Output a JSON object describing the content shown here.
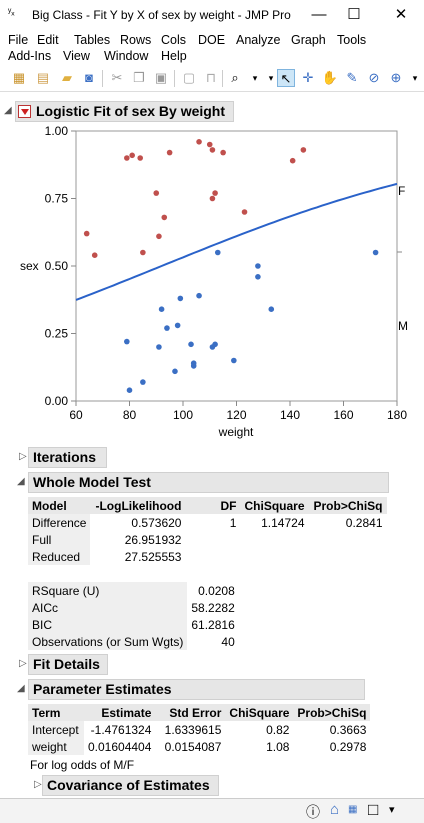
{
  "window": {
    "title": "Big Class - Fit Y by X of sex by weight - JMP Pro",
    "minimize": "—",
    "maximize": "☐",
    "close": "✕"
  },
  "menu": {
    "row1": [
      "File",
      "Edit",
      "Tables",
      "Rows",
      "Cols",
      "DOE",
      "Analyze",
      "Graph",
      "Tools"
    ],
    "row2": [
      "Add-Ins",
      "View",
      "Window",
      "Help"
    ]
  },
  "report": {
    "title": "Logistic Fit of sex By weight",
    "iterations": "Iterations",
    "whole_model": "Whole Model Test",
    "fit_details": "Fit Details",
    "parameter_estimates": "Parameter Estimates",
    "covariance": "Covariance of Estimates",
    "log_odds_note": "For log odds of M/F"
  },
  "whole_model_table": {
    "headers": [
      "Model",
      "-LogLikelihood",
      "DF",
      "ChiSquare",
      "Prob>ChiSq"
    ],
    "rows": [
      [
        "Difference",
        "0.573620",
        "1",
        "1.14724",
        "0.2841"
      ],
      [
        "Full",
        "26.951932",
        "",
        "",
        ""
      ],
      [
        "Reduced",
        "27.525553",
        "",
        "",
        ""
      ]
    ]
  },
  "fit_stats": [
    [
      "RSquare (U)",
      "0.0208"
    ],
    [
      "AICc",
      "58.2282"
    ],
    [
      "BIC",
      "61.2816"
    ],
    [
      "Observations (or Sum Wgts)",
      "40"
    ]
  ],
  "param_table": {
    "headers": [
      "Term",
      "Estimate",
      "Std Error",
      "ChiSquare",
      "Prob>ChiSq"
    ],
    "rows": [
      [
        "Intercept",
        "-1.4761324",
        "1.6339615",
        "0.82",
        "0.3663"
      ],
      [
        "weight",
        "0.01604404",
        "0.0154087",
        "1.08",
        "0.2978"
      ]
    ]
  },
  "colors": {
    "female": "#c0504d",
    "male": "#3b6fc4",
    "curve": "#2a62c9"
  },
  "chart_data": {
    "type": "scatter",
    "xlabel": "weight",
    "ylabel": "sex",
    "xlim": [
      60,
      180
    ],
    "ylim": [
      0,
      1
    ],
    "x_ticks": [
      "60",
      "80",
      "100",
      "120",
      "140",
      "160",
      "180"
    ],
    "y_ticks": [
      "0.00",
      "0.25",
      "0.50",
      "0.75",
      "1.00"
    ],
    "right_labels": [
      "F",
      "M"
    ],
    "series": [
      {
        "x": [
          64,
          67,
          79,
          81,
          84,
          85,
          90,
          91,
          93,
          95,
          106,
          110,
          111,
          111,
          112,
          115,
          123,
          141,
          145
        ],
        "y": [
          0.62,
          0.54,
          0.9,
          0.91,
          0.9,
          0.55,
          0.77,
          0.61,
          0.68,
          0.92,
          0.96,
          0.95,
          0.93,
          0.75,
          0.77,
          0.92,
          0.7,
          0.89,
          0.93
        ]
      },
      {
        "x": [
          79,
          80,
          85,
          91,
          92,
          94,
          97,
          98,
          99,
          103,
          104,
          104,
          106,
          111,
          112,
          119,
          128,
          128,
          133,
          172,
          113
        ],
        "y": [
          0.22,
          0.04,
          0.07,
          0.2,
          0.34,
          0.27,
          0.11,
          0.28,
          0.38,
          0.21,
          0.14,
          0.13,
          0.39,
          0.2,
          0.21,
          0.15,
          0.46,
          0.5,
          0.34,
          0.55,
          0.55
        ]
      }
    ],
    "curve": {
      "intercept": -1.4761324,
      "slope": 0.01604404
    }
  },
  "statusbar": {
    "info": "ⓘ",
    "home": "⌂",
    "box": "□",
    "arrow": "▾"
  }
}
